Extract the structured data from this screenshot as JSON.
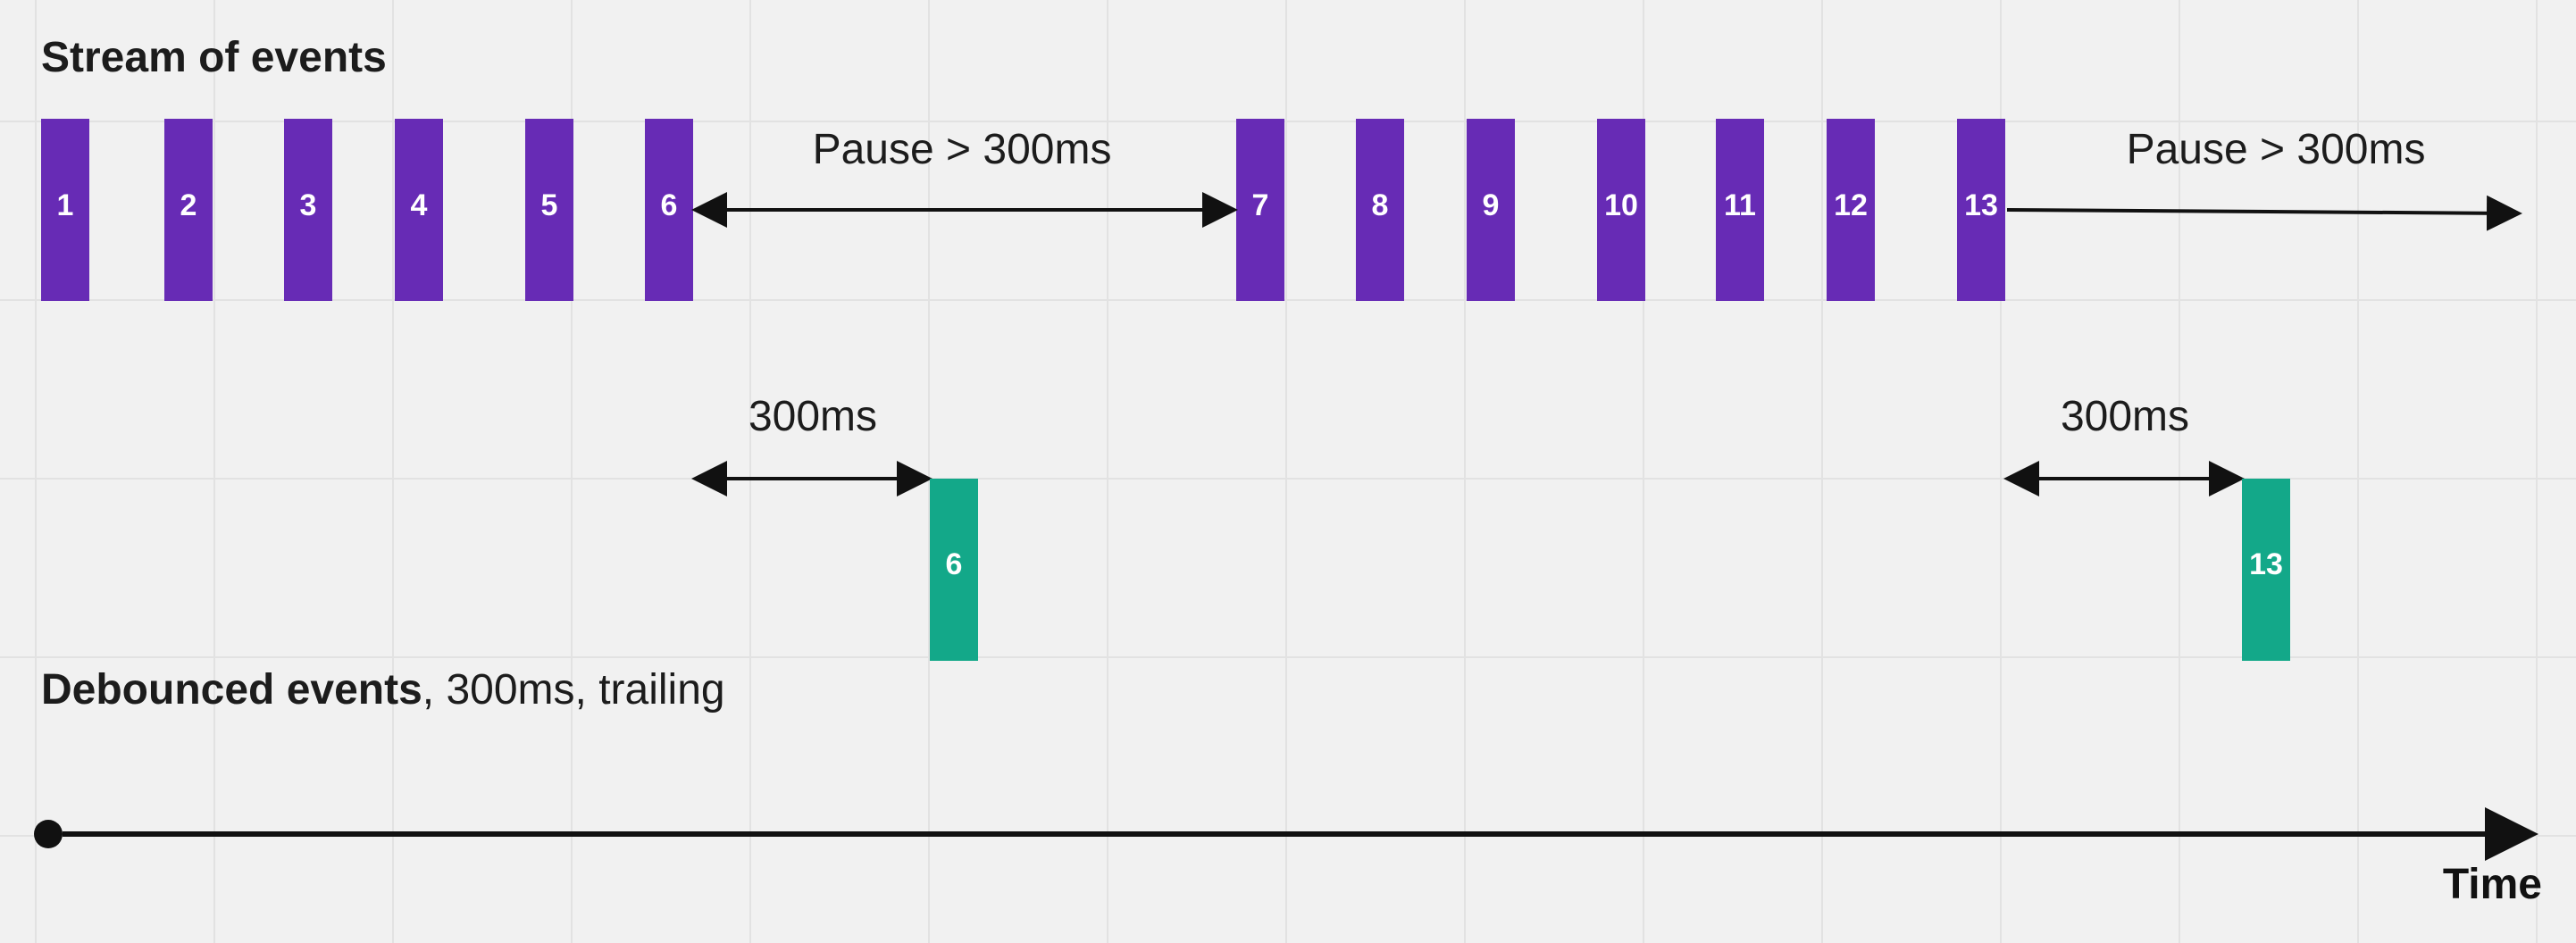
{
  "diagram": {
    "stream_title": "Stream of events",
    "debounced_title_bold": "Debounced events",
    "debounced_title_rest": ", 300ms, trailing",
    "time_label": "Time",
    "colors": {
      "background": "#f1f1f1",
      "grid": "#e2e2e2",
      "event_bar": "#672bb5",
      "debounced_bar": "#13a889",
      "arrow": "#111111"
    },
    "source_events": [
      "1",
      "2",
      "3",
      "4",
      "5",
      "6",
      "7",
      "8",
      "9",
      "10",
      "11",
      "12",
      "13"
    ],
    "debounced_events": [
      "6",
      "13"
    ],
    "annotations": {
      "pause_1": "Pause > 300ms",
      "pause_2": "Pause > 300ms",
      "delay_1": "300ms",
      "delay_2": "300ms"
    }
  }
}
